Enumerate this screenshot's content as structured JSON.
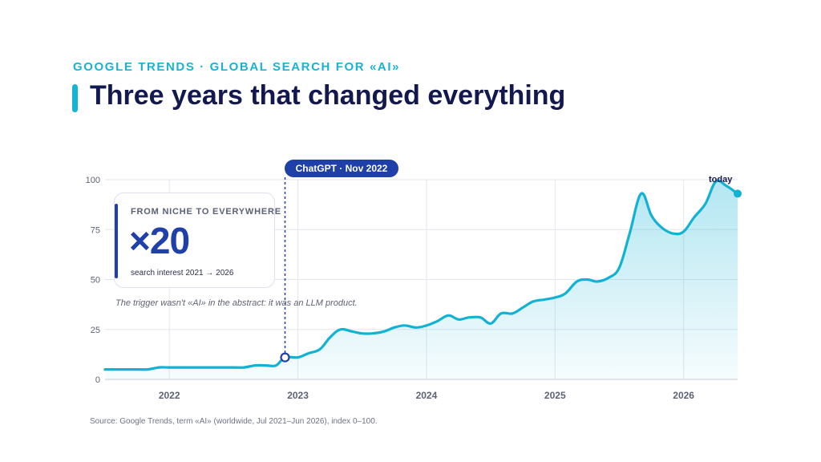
{
  "header": {
    "kicker": "GOOGLE TRENDS · GLOBAL SEARCH FOR «AI»",
    "title": "Three years that changed everything"
  },
  "callout": {
    "kicker": "FROM NICHE TO EVERYWHERE",
    "value": "×20",
    "caption": "search interest 2021 → 2026"
  },
  "note": "The trigger wasn't «AI» in the abstract: it was an LLM product.",
  "event_label": "ChatGPT · Nov 2022",
  "end_label": "today",
  "source": "Source: Google Trends, term «AI» (worldwide, Jul 2021–Jun 2026), index 0–100.",
  "colors": {
    "line": "#12b2d4",
    "accent_dark": "#1f3fa9",
    "title": "#13184f",
    "grid": "#e4e6ee"
  },
  "chart_data": {
    "type": "area",
    "title": "",
    "xlabel": "",
    "ylabel": "",
    "ylim": [
      0,
      100
    ],
    "yticks": [
      0,
      25,
      50,
      75,
      100
    ],
    "xticks": [
      "2022",
      "2023",
      "2024",
      "2025",
      "2026"
    ],
    "xticks_values": [
      2022,
      2023,
      2024,
      2025,
      2026
    ],
    "xlim": [
      2021.5,
      2026.42
    ],
    "grid": true,
    "series": [
      {
        "x": [
          2021.5,
          2021.75,
          2021.83,
          2021.92,
          2022.0,
          2022.25,
          2022.5,
          2022.58,
          2022.67,
          2022.75,
          2022.83,
          2022.9,
          2023.0,
          2023.08,
          2023.17,
          2023.25,
          2023.33,
          2023.42,
          2023.5,
          2023.58,
          2023.67,
          2023.75,
          2023.83,
          2023.92,
          2024.0,
          2024.08,
          2024.17,
          2024.25,
          2024.33,
          2024.42,
          2024.5,
          2024.58,
          2024.67,
          2024.75,
          2024.83,
          2024.92,
          2025.0,
          2025.08,
          2025.17,
          2025.25,
          2025.33,
          2025.42,
          2025.5,
          2025.58,
          2025.67,
          2025.75,
          2025.83,
          2025.92,
          2026.0,
          2026.08,
          2026.17,
          2026.25,
          2026.33,
          2026.42
        ],
        "values": [
          5,
          5,
          5,
          6,
          6,
          6,
          6,
          6,
          7,
          7,
          7,
          11,
          11,
          13,
          15,
          21,
          25,
          24,
          23,
          23,
          24,
          26,
          27,
          26,
          27,
          29,
          32,
          30,
          31,
          31,
          28,
          33,
          33,
          36,
          39,
          40,
          41,
          43,
          49,
          50,
          49,
          51,
          56,
          73,
          93,
          82,
          76,
          73,
          74,
          81,
          88,
          99,
          97,
          93
        ]
      }
    ],
    "annotations": [
      {
        "x": 2022.9,
        "y": 11,
        "label": "ChatGPT · Nov 2022"
      },
      {
        "x": 2026.42,
        "y": 93,
        "label": "today"
      }
    ]
  }
}
